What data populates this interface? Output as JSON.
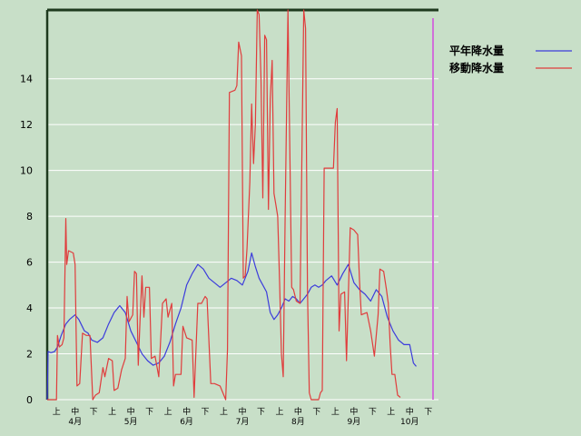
{
  "chart_data": {
    "type": "line",
    "title": "",
    "xlabel": "",
    "ylabel": "",
    "ylim": [
      0,
      17
    ],
    "yticks": [
      0,
      2,
      4,
      6,
      8,
      10,
      12,
      14
    ],
    "grid": "horizontal",
    "legend_placement": "top-right",
    "months": [
      "4月",
      "5月",
      "6月",
      "7月",
      "8月",
      "9月",
      "10月"
    ],
    "dekads": [
      "上",
      "中",
      "下"
    ],
    "x_start": 0,
    "x_end": 21,
    "series": [
      {
        "name": "平年降水量",
        "color": "#3c3cdc",
        "points": [
          [
            0.0,
            0.0
          ],
          [
            0.05,
            2.1
          ],
          [
            0.2,
            2.05
          ],
          [
            0.4,
            2.1
          ],
          [
            0.55,
            2.3
          ],
          [
            0.75,
            2.8
          ],
          [
            1.0,
            3.3
          ],
          [
            1.2,
            3.5
          ],
          [
            1.5,
            3.7
          ],
          [
            1.7,
            3.5
          ],
          [
            2.0,
            3.0
          ],
          [
            2.2,
            2.9
          ],
          [
            2.4,
            2.6
          ],
          [
            2.7,
            2.5
          ],
          [
            3.0,
            2.7
          ],
          [
            3.3,
            3.3
          ],
          [
            3.6,
            3.8
          ],
          [
            3.9,
            4.1
          ],
          [
            4.2,
            3.8
          ],
          [
            4.5,
            3.0
          ],
          [
            4.8,
            2.5
          ],
          [
            5.1,
            2.0
          ],
          [
            5.4,
            1.7
          ],
          [
            5.7,
            1.5
          ],
          [
            6.0,
            1.6
          ],
          [
            6.3,
            1.9
          ],
          [
            6.6,
            2.5
          ],
          [
            6.9,
            3.3
          ],
          [
            7.2,
            4.0
          ],
          [
            7.5,
            5.0
          ],
          [
            7.8,
            5.5
          ],
          [
            8.1,
            5.9
          ],
          [
            8.4,
            5.7
          ],
          [
            8.7,
            5.3
          ],
          [
            9.0,
            5.1
          ],
          [
            9.3,
            4.9
          ],
          [
            9.6,
            5.1
          ],
          [
            9.9,
            5.3
          ],
          [
            10.2,
            5.2
          ],
          [
            10.5,
            5.0
          ],
          [
            10.8,
            5.6
          ],
          [
            11.0,
            6.4
          ],
          [
            11.2,
            5.8
          ],
          [
            11.4,
            5.3
          ],
          [
            11.6,
            5.0
          ],
          [
            11.8,
            4.7
          ],
          [
            12.0,
            3.8
          ],
          [
            12.2,
            3.5
          ],
          [
            12.4,
            3.7
          ],
          [
            12.6,
            4.0
          ],
          [
            12.8,
            4.4
          ],
          [
            13.0,
            4.3
          ],
          [
            13.2,
            4.5
          ],
          [
            13.4,
            4.4
          ],
          [
            13.6,
            4.2
          ],
          [
            13.8,
            4.4
          ],
          [
            14.0,
            4.6
          ],
          [
            14.2,
            4.9
          ],
          [
            14.4,
            5.0
          ],
          [
            14.6,
            4.9
          ],
          [
            14.8,
            5.0
          ],
          [
            15.0,
            5.2
          ],
          [
            15.3,
            5.4
          ],
          [
            15.6,
            5.0
          ],
          [
            15.9,
            5.5
          ],
          [
            16.2,
            5.9
          ],
          [
            16.5,
            5.1
          ],
          [
            16.8,
            4.8
          ],
          [
            17.1,
            4.6
          ],
          [
            17.4,
            4.3
          ],
          [
            17.7,
            4.8
          ],
          [
            18.0,
            4.5
          ],
          [
            18.3,
            3.6
          ],
          [
            18.6,
            3.0
          ],
          [
            18.9,
            2.6
          ],
          [
            19.2,
            2.4
          ],
          [
            19.5,
            2.4
          ],
          [
            19.7,
            1.6
          ],
          [
            19.85,
            1.45
          ]
        ]
      },
      {
        "name": "移動降水量",
        "color": "#e03c3c",
        "points": [
          [
            0.0,
            0.0
          ],
          [
            0.5,
            0.0
          ],
          [
            0.55,
            2.8
          ],
          [
            0.65,
            2.3
          ],
          [
            0.8,
            2.4
          ],
          [
            0.9,
            2.7
          ],
          [
            1.0,
            7.9
          ],
          [
            1.05,
            5.9
          ],
          [
            1.15,
            6.5
          ],
          [
            1.4,
            6.4
          ],
          [
            1.5,
            5.9
          ],
          [
            1.6,
            0.6
          ],
          [
            1.75,
            0.7
          ],
          [
            1.9,
            2.9
          ],
          [
            2.1,
            2.8
          ],
          [
            2.3,
            2.8
          ],
          [
            2.45,
            0.0
          ],
          [
            2.6,
            0.2
          ],
          [
            2.8,
            0.3
          ],
          [
            3.0,
            1.4
          ],
          [
            3.1,
            1.0
          ],
          [
            3.3,
            1.8
          ],
          [
            3.5,
            1.7
          ],
          [
            3.6,
            0.4
          ],
          [
            3.8,
            0.5
          ],
          [
            4.0,
            1.3
          ],
          [
            4.2,
            1.8
          ],
          [
            4.3,
            4.5
          ],
          [
            4.4,
            3.4
          ],
          [
            4.6,
            3.7
          ],
          [
            4.7,
            5.6
          ],
          [
            4.8,
            5.5
          ],
          [
            4.9,
            1.5
          ],
          [
            5.0,
            3.6
          ],
          [
            5.1,
            5.4
          ],
          [
            5.2,
            3.6
          ],
          [
            5.3,
            4.9
          ],
          [
            5.5,
            4.9
          ],
          [
            5.6,
            1.8
          ],
          [
            5.8,
            1.9
          ],
          [
            6.0,
            1.0
          ],
          [
            6.2,
            4.2
          ],
          [
            6.4,
            4.4
          ],
          [
            6.5,
            3.6
          ],
          [
            6.6,
            3.9
          ],
          [
            6.7,
            4.2
          ],
          [
            6.8,
            0.6
          ],
          [
            6.9,
            1.1
          ],
          [
            7.2,
            1.1
          ],
          [
            7.3,
            3.2
          ],
          [
            7.5,
            2.7
          ],
          [
            7.8,
            2.6
          ],
          [
            7.9,
            0.1
          ],
          [
            8.1,
            4.2
          ],
          [
            8.3,
            4.2
          ],
          [
            8.5,
            4.5
          ],
          [
            8.6,
            4.4
          ],
          [
            8.8,
            0.7
          ],
          [
            9.0,
            0.7
          ],
          [
            9.3,
            0.6
          ],
          [
            9.6,
            0.0
          ],
          [
            9.7,
            2.2
          ],
          [
            9.8,
            13.4
          ],
          [
            10.1,
            13.5
          ],
          [
            10.2,
            13.7
          ],
          [
            10.3,
            15.6
          ],
          [
            10.45,
            15.0
          ],
          [
            10.55,
            5.3
          ],
          [
            10.65,
            5.4
          ],
          [
            10.75,
            6.6
          ],
          [
            10.9,
            9.5
          ],
          [
            11.0,
            12.9
          ],
          [
            11.1,
            10.3
          ],
          [
            11.2,
            12.0
          ],
          [
            11.3,
            17.0
          ],
          [
            11.4,
            16.8
          ],
          [
            11.5,
            14.0
          ],
          [
            11.6,
            8.8
          ],
          [
            11.7,
            15.9
          ],
          [
            11.8,
            15.7
          ],
          [
            11.9,
            8.3
          ],
          [
            12.0,
            13.1
          ],
          [
            12.1,
            14.8
          ],
          [
            12.2,
            9.0
          ],
          [
            12.3,
            8.5
          ],
          [
            12.4,
            8.0
          ],
          [
            12.5,
            5.1
          ],
          [
            12.6,
            2.0
          ],
          [
            12.7,
            1.0
          ],
          [
            12.8,
            8.0
          ],
          [
            12.95,
            17.0
          ],
          [
            13.15,
            4.9
          ],
          [
            13.25,
            4.8
          ],
          [
            13.4,
            4.3
          ],
          [
            13.6,
            4.2
          ],
          [
            13.8,
            17.0
          ],
          [
            13.9,
            16.2
          ],
          [
            14.0,
            4.8
          ],
          [
            14.1,
            0.3
          ],
          [
            14.2,
            0.0
          ],
          [
            14.6,
            0.0
          ],
          [
            14.7,
            0.3
          ],
          [
            14.8,
            0.4
          ],
          [
            14.9,
            10.1
          ],
          [
            15.2,
            10.1
          ],
          [
            15.4,
            10.1
          ],
          [
            15.5,
            12.1
          ],
          [
            15.6,
            12.7
          ],
          [
            15.7,
            3.0
          ],
          [
            15.8,
            4.6
          ],
          [
            16.0,
            4.7
          ],
          [
            16.1,
            1.7
          ],
          [
            16.3,
            7.5
          ],
          [
            16.5,
            7.4
          ],
          [
            16.7,
            7.2
          ],
          [
            16.8,
            5.2
          ],
          [
            16.9,
            3.7
          ],
          [
            17.2,
            3.8
          ],
          [
            17.4,
            3.0
          ],
          [
            17.6,
            1.9
          ],
          [
            17.8,
            3.7
          ],
          [
            17.9,
            5.7
          ],
          [
            18.1,
            5.6
          ],
          [
            18.25,
            4.8
          ],
          [
            18.35,
            4.2
          ],
          [
            18.45,
            2.4
          ],
          [
            18.55,
            1.1
          ],
          [
            18.7,
            1.1
          ],
          [
            18.85,
            0.2
          ],
          [
            19.0,
            0.1
          ]
        ]
      }
    ]
  }
}
